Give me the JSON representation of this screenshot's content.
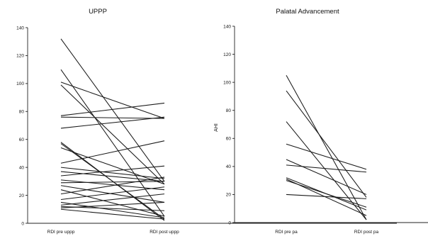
{
  "chart_data": [
    {
      "type": "line",
      "title": "UPPP",
      "xlabel": "",
      "ylabel": "",
      "categories": [
        "RDI pre uppp",
        "RDI post uppp"
      ],
      "ylim": [
        0,
        140
      ],
      "yticks": [
        0,
        20,
        40,
        60,
        80,
        100,
        120,
        140
      ],
      "grid": false,
      "series": [
        {
          "values": [
            132,
            30
          ]
        },
        {
          "values": [
            110,
            5
          ]
        },
        {
          "values": [
            101,
            75
          ]
        },
        {
          "values": [
            99,
            28
          ]
        },
        {
          "values": [
            77,
            86
          ]
        },
        {
          "values": [
            76,
            75
          ]
        },
        {
          "values": [
            68,
            76
          ]
        },
        {
          "values": [
            58,
            2
          ]
        },
        {
          "values": [
            57,
            3
          ]
        },
        {
          "values": [
            54,
            28
          ]
        },
        {
          "values": [
            43,
            59
          ]
        },
        {
          "values": [
            40,
            32
          ]
        },
        {
          "values": [
            37,
            30
          ]
        },
        {
          "values": [
            34,
            41
          ]
        },
        {
          "values": [
            31,
            24
          ]
        },
        {
          "values": [
            29,
            30
          ]
        },
        {
          "values": [
            27,
            15
          ]
        },
        {
          "values": [
            24,
            5
          ]
        },
        {
          "values": [
            21,
            33
          ]
        },
        {
          "values": [
            17,
            26
          ]
        },
        {
          "values": [
            15,
            4
          ]
        },
        {
          "values": [
            13,
            21
          ]
        },
        {
          "values": [
            12,
            9
          ]
        },
        {
          "values": [
            11,
            15
          ]
        },
        {
          "values": [
            10,
            3
          ]
        }
      ]
    },
    {
      "type": "line",
      "title": "Palatal Advancement",
      "xlabel": "",
      "ylabel": "AHI",
      "categories": [
        "RDI pre pa",
        "RDI post pa"
      ],
      "ylim": [
        0,
        140
      ],
      "yticks": [
        0,
        20,
        40,
        60,
        80,
        100,
        120,
        140
      ],
      "grid": false,
      "series": [
        {
          "values": [
            105,
            2
          ]
        },
        {
          "values": [
            94,
            18
          ]
        },
        {
          "values": [
            72,
            2
          ]
        },
        {
          "values": [
            56,
            38
          ]
        },
        {
          "values": [
            45,
            20
          ]
        },
        {
          "values": [
            41,
            36
          ]
        },
        {
          "values": [
            32,
            9
          ]
        },
        {
          "values": [
            31,
            5
          ]
        },
        {
          "values": [
            30,
            11
          ]
        },
        {
          "values": [
            20,
            17
          ]
        }
      ]
    }
  ]
}
